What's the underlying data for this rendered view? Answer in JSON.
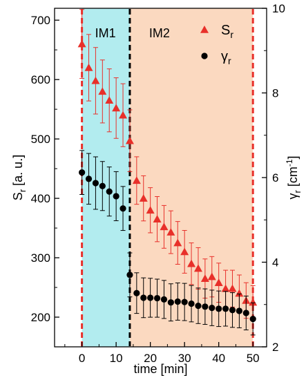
{
  "chart_data": {
    "type": "scatter",
    "xlabel": "time [min]",
    "ylabel_left": {
      "main": "S",
      "sub": "r",
      "unit": " [a. u.]"
    },
    "ylabel_right": {
      "main": "γ",
      "sub": "r",
      "unit": " [cm",
      "sup": "-1",
      "close": "]"
    },
    "xlim": [
      -8,
      54
    ],
    "ylim_left": [
      150,
      720
    ],
    "ylim_right": [
      2,
      10
    ],
    "x_ticks": [
      0,
      10,
      20,
      30,
      40,
      50
    ],
    "y_left_ticks": [
      200,
      300,
      400,
      500,
      600,
      700
    ],
    "y_right_ticks": [
      2,
      4,
      6,
      8,
      10
    ],
    "regions": [
      {
        "label": "IM1",
        "x_start": 0,
        "x_end": 14,
        "color": "#b2ecef"
      },
      {
        "label": "IM2",
        "x_start": 14,
        "x_end": 50,
        "color": "#fbd9c0"
      }
    ],
    "vlines": [
      {
        "x": 0,
        "color": "#e8302a"
      },
      {
        "x": 14,
        "color": "#000000"
      },
      {
        "x": 50,
        "color": "#e8302a"
      }
    ],
    "legend_position": "top-right",
    "series": [
      {
        "name": "S",
        "name_sub": "r",
        "axis": "left",
        "marker": "triangle",
        "color": "#e8302a",
        "x": [
          0,
          2,
          4,
          6,
          8,
          10,
          12,
          14,
          16,
          18,
          20,
          22,
          24,
          26,
          28,
          30,
          32,
          34,
          36,
          38,
          40,
          42,
          44,
          46,
          48,
          50
        ],
        "y": [
          660,
          620,
          598,
          580,
          565,
          552,
          540,
          497,
          430,
          400,
          380,
          365,
          352,
          343,
          325,
          310,
          290,
          282,
          265,
          268,
          258,
          248,
          248,
          240,
          228,
          225
        ],
        "err": [
          58,
          56,
          56,
          53,
          53,
          51,
          53,
          52,
          40,
          38,
          38,
          38,
          36,
          36,
          36,
          36,
          35,
          35,
          33,
          34,
          33,
          31,
          31,
          31,
          30,
          28
        ]
      },
      {
        "name": "γ",
        "name_sub": "r",
        "axis": "right",
        "marker": "circle",
        "color": "#000000",
        "x": [
          0,
          2,
          4,
          6,
          8,
          10,
          12,
          14,
          16,
          18,
          20,
          22,
          24,
          26,
          28,
          30,
          32,
          34,
          36,
          38,
          40,
          42,
          44,
          46,
          48,
          50
        ],
        "y": [
          6.12,
          5.97,
          5.87,
          5.8,
          5.67,
          5.56,
          5.27,
          3.7,
          3.27,
          3.16,
          3.16,
          3.15,
          3.12,
          3.05,
          3.07,
          3.06,
          3.02,
          2.97,
          2.95,
          2.92,
          2.9,
          2.9,
          2.87,
          2.85,
          2.8,
          2.66
        ],
        "err": [
          0.52,
          0.6,
          0.62,
          0.58,
          0.58,
          0.58,
          0.52,
          0.52,
          0.48,
          0.47,
          0.46,
          0.45,
          0.45,
          0.44,
          0.44,
          0.44,
          0.43,
          0.42,
          0.42,
          0.42,
          0.42,
          0.41,
          0.41,
          0.4,
          0.4,
          0.38
        ]
      }
    ]
  }
}
